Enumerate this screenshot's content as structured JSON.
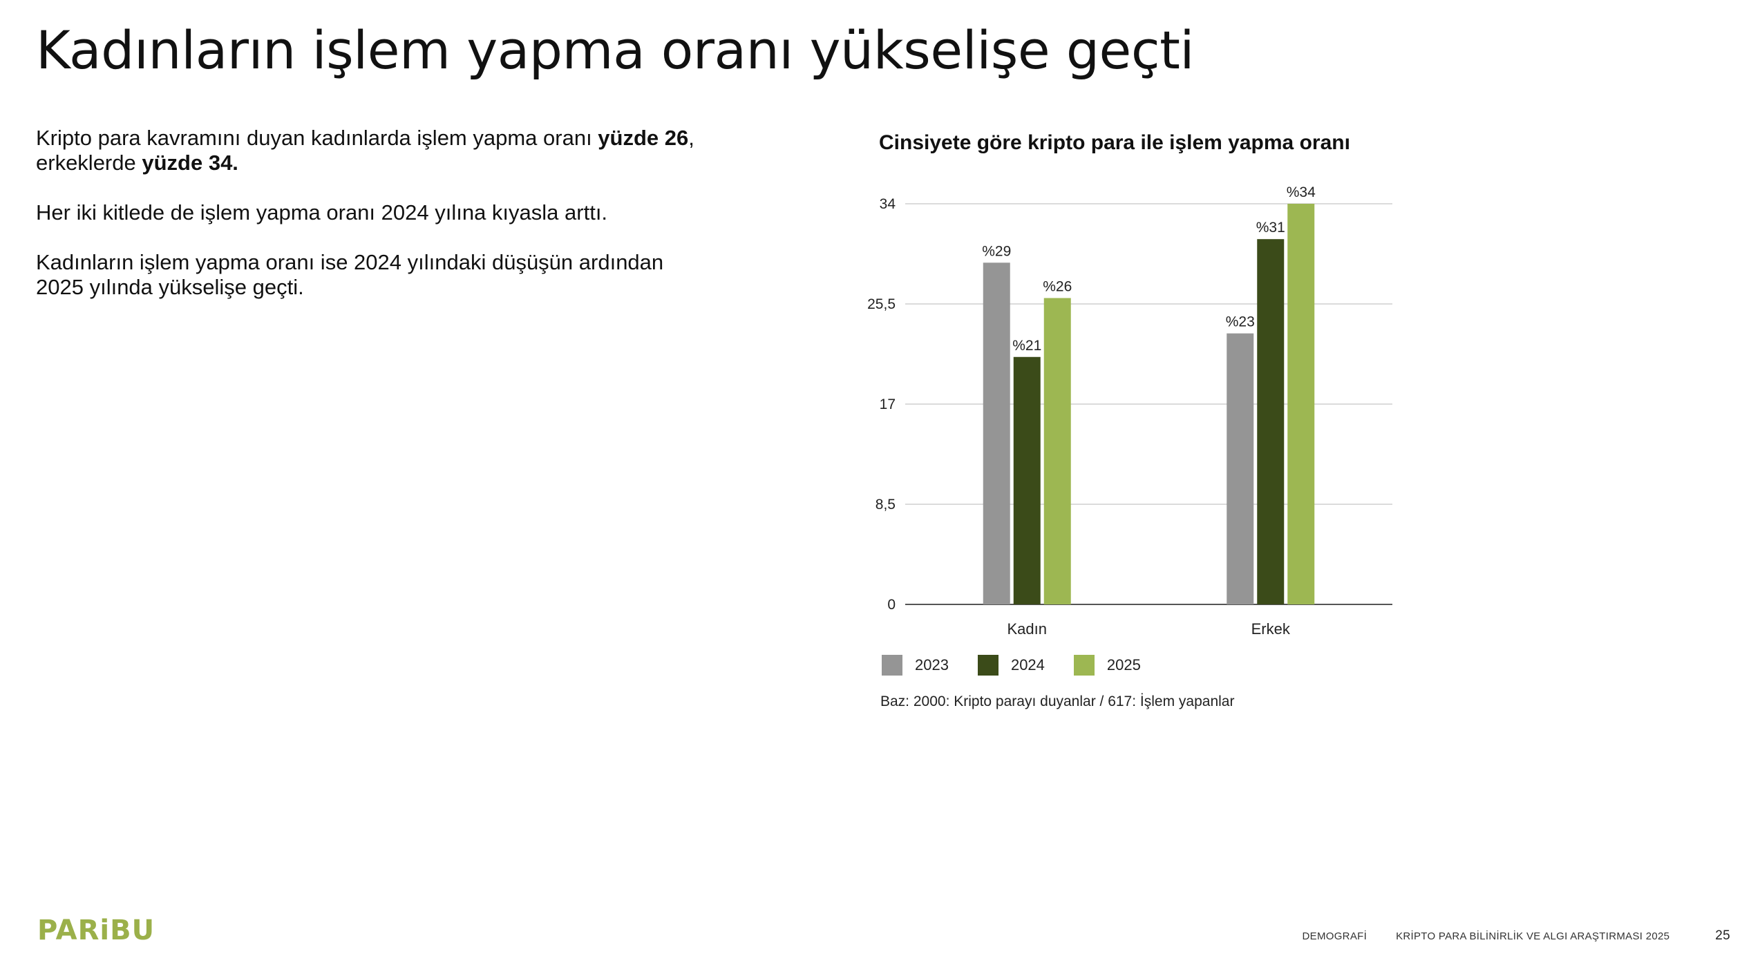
{
  "slide": {
    "title": "Kadınların işlem yapma oranı yükselişe geçti",
    "paragraphs": [
      {
        "parts": [
          {
            "text": "Kripto para kavramını duyan kadınlarda işlem yapma oranı ",
            "bold": false
          },
          {
            "text": "yüzde 26",
            "bold": true
          },
          {
            "text": ",",
            "bold": false
          },
          {
            "text": "\n",
            "bold": false
          },
          {
            "text": "erkeklerde ",
            "bold": false
          },
          {
            "text": "yüzde 34.",
            "bold": true
          }
        ]
      },
      {
        "parts": [
          {
            "text": "Her iki kitlede de işlem yapma oranı 2024 yılına kıyasla arttı.",
            "bold": false
          }
        ]
      },
      {
        "parts": [
          {
            "text": "Kadınların işlem yapma oranı ise 2024 yılındaki düşüşün ardından",
            "bold": false
          },
          {
            "text": "\n",
            "bold": false
          },
          {
            "text": "2025 yılında yükselişe geçti.",
            "bold": false
          }
        ]
      }
    ]
  },
  "chart_data": {
    "type": "bar",
    "title": "Cinsiyete göre kripto para ile işlem yapma oranı",
    "categories": [
      "Kadın",
      "Erkek"
    ],
    "series": [
      {
        "name": "2023",
        "values": [
          29,
          23
        ],
        "color": "#959595",
        "labels": [
          "%29",
          "%23"
        ]
      },
      {
        "name": "2024",
        "values": [
          21,
          31
        ],
        "color": "#3b4b19",
        "labels": [
          "%21",
          "%31"
        ]
      },
      {
        "name": "2025",
        "values": [
          26,
          34
        ],
        "color": "#9db752",
        "labels": [
          "%26",
          "%34"
        ]
      }
    ],
    "yticks": [
      0,
      8.5,
      17,
      25.5,
      34
    ],
    "ytick_labels": [
      "0",
      "8,5",
      "17",
      "25,5",
      "34"
    ],
    "ylim": [
      0,
      34
    ],
    "grid": true,
    "legend": "bottom-left",
    "note": "Baz: 2000: Kripto parayı duyanlar / 617: İşlem yapanlar"
  },
  "footer": {
    "logo": "PARiBU",
    "section": "DEMOGRAFİ",
    "report": "KRİPTO PARA BİLİNİRLİK VE ALGI ARAŞTIRMASI 2025",
    "page": "25"
  }
}
